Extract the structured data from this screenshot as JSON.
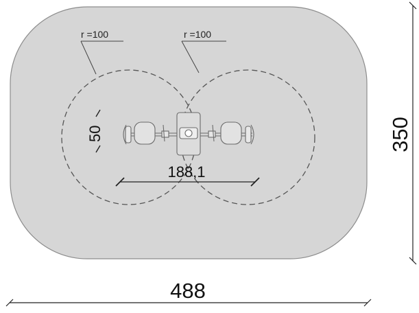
{
  "drawing": {
    "radius_label_left": "r =100",
    "radius_label_right": "r =100",
    "inner_dimension": "50",
    "center_dimension": "188,1",
    "height_dimension": "350",
    "width_dimension": "488"
  },
  "colors": {
    "safety_zone_fill": "#d6d6d6",
    "safety_zone_stroke": "#8c8c8c",
    "dashed_circle": "#555555",
    "dimension_line": "#222222",
    "equipment_stroke": "#6a6a6a"
  }
}
